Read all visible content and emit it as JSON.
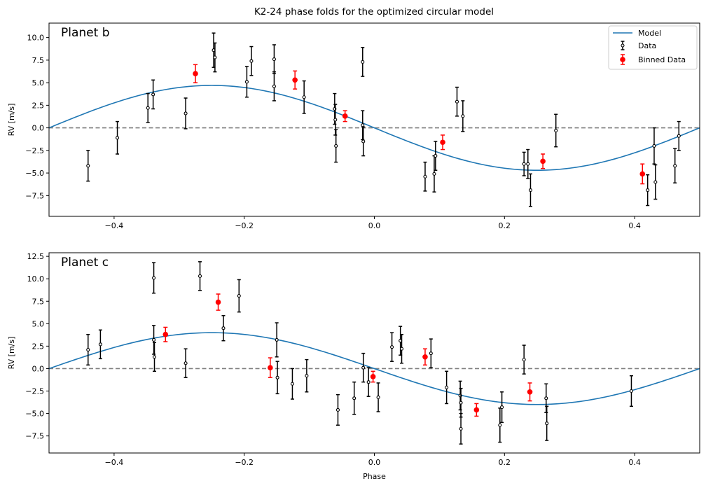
{
  "figure": {
    "title": "K2-24 phase folds for the optimized circular model"
  },
  "legend": {
    "placement": "top-right",
    "model_label": "Model",
    "data_label": "Data",
    "binned_label": "Binned Data"
  },
  "colors": {
    "model": "#1f77b4",
    "binned": "#ff0000",
    "data": "#000000",
    "zero_line": "#7f7f7f"
  },
  "chart_data": [
    {
      "type": "scatter",
      "panel_label": "Planet b",
      "xlabel": "",
      "ylabel": "RV [m/s]",
      "xlim": [
        -0.5,
        0.5
      ],
      "ylim": [
        -9.8,
        11.6
      ],
      "xticks": [
        -0.4,
        -0.2,
        0.0,
        0.2,
        0.4
      ],
      "xtick_labels": [
        "−0.4",
        "−0.2",
        "0.0",
        "0.2",
        "0.4"
      ],
      "yticks": [
        -7.5,
        -5.0,
        -2.5,
        0.0,
        2.5,
        5.0,
        7.5,
        10.0
      ],
      "ytick_labels": [
        "−7.5",
        "−5.0",
        "−2.5",
        "0.0",
        "2.5",
        "5.0",
        "7.5",
        "10.0"
      ],
      "model_amplitude": 4.7,
      "data": [
        [
          -0.44,
          -4.2,
          1.7
        ],
        [
          -0.395,
          -1.1,
          1.8
        ],
        [
          -0.348,
          2.2,
          1.6
        ],
        [
          -0.34,
          3.7,
          1.6
        ],
        [
          -0.29,
          1.6,
          1.7
        ],
        [
          -0.247,
          8.6,
          1.9
        ],
        [
          -0.245,
          7.8,
          1.6
        ],
        [
          -0.196,
          5.1,
          1.7
        ],
        [
          -0.189,
          7.4,
          1.6
        ],
        [
          -0.154,
          7.6,
          1.6
        ],
        [
          -0.154,
          4.6,
          1.6
        ],
        [
          -0.108,
          3.4,
          1.8
        ],
        [
          -0.061,
          2.1,
          1.7
        ],
        [
          -0.06,
          0.9,
          1.7
        ],
        [
          -0.059,
          -2.0,
          1.8
        ],
        [
          -0.018,
          7.3,
          1.6
        ],
        [
          -0.018,
          0.3,
          1.6
        ],
        [
          -0.017,
          -1.5,
          1.6
        ],
        [
          0.078,
          -5.4,
          1.6
        ],
        [
          0.092,
          -5.1,
          2.0
        ],
        [
          0.094,
          -3.1,
          1.6
        ],
        [
          0.127,
          2.9,
          1.6
        ],
        [
          0.136,
          1.3,
          1.7
        ],
        [
          0.23,
          -4.0,
          1.3
        ],
        [
          0.236,
          -4.0,
          1.6
        ],
        [
          0.24,
          -6.9,
          1.8
        ],
        [
          0.279,
          -0.3,
          1.8
        ],
        [
          0.42,
          -6.9,
          1.7
        ],
        [
          0.43,
          -2.0,
          2.0
        ],
        [
          0.432,
          -6.0,
          1.9
        ],
        [
          0.462,
          -4.2,
          1.9
        ],
        [
          0.468,
          -0.9,
          1.6
        ]
      ],
      "binned": [
        [
          -0.275,
          6.0,
          1.0
        ],
        [
          -0.122,
          5.3,
          1.0
        ],
        [
          -0.045,
          1.3,
          0.6
        ],
        [
          0.105,
          -1.6,
          0.8
        ],
        [
          0.259,
          -3.7,
          0.8
        ],
        [
          0.412,
          -5.1,
          1.1
        ]
      ]
    },
    {
      "type": "scatter",
      "panel_label": "Planet c",
      "xlabel": "Phase",
      "ylabel": "RV [m/s]",
      "xlim": [
        -0.5,
        0.5
      ],
      "ylim": [
        -9.4,
        12.9
      ],
      "xticks": [
        -0.4,
        -0.2,
        0.0,
        0.2,
        0.4
      ],
      "xtick_labels": [
        "−0.4",
        "−0.2",
        "0.0",
        "0.2",
        "0.4"
      ],
      "yticks": [
        -7.5,
        -5.0,
        -2.5,
        0.0,
        2.5,
        5.0,
        7.5,
        10.0,
        12.5
      ],
      "ytick_labels": [
        "−7.5",
        "−5.0",
        "−2.5",
        "0.0",
        "2.5",
        "5.0",
        "7.5",
        "10.0",
        "12.5"
      ],
      "model_amplitude": 4.0,
      "data": [
        [
          -0.44,
          2.1,
          1.7
        ],
        [
          -0.421,
          2.7,
          1.6
        ],
        [
          -0.339,
          10.1,
          1.7
        ],
        [
          -0.339,
          3.2,
          1.6
        ],
        [
          -0.338,
          1.3,
          1.6
        ],
        [
          -0.29,
          0.6,
          1.6
        ],
        [
          -0.268,
          10.3,
          1.6
        ],
        [
          -0.232,
          4.5,
          1.4
        ],
        [
          -0.208,
          8.1,
          1.8
        ],
        [
          -0.15,
          3.2,
          1.9
        ],
        [
          -0.149,
          -1.0,
          1.8
        ],
        [
          -0.126,
          -1.7,
          1.7
        ],
        [
          -0.104,
          -0.8,
          1.8
        ],
        [
          -0.056,
          -4.6,
          1.7
        ],
        [
          -0.031,
          -3.3,
          1.8
        ],
        [
          -0.017,
          0.1,
          1.6
        ],
        [
          -0.009,
          -1.5,
          1.6
        ],
        [
          0.006,
          -3.2,
          1.6
        ],
        [
          0.027,
          2.4,
          1.6
        ],
        [
          0.04,
          3.1,
          1.6
        ],
        [
          0.042,
          2.2,
          1.6
        ],
        [
          0.087,
          1.7,
          1.6
        ],
        [
          0.111,
          -2.1,
          1.8
        ],
        [
          0.132,
          -3.0,
          1.6
        ],
        [
          0.133,
          -3.8,
          1.6
        ],
        [
          0.133,
          -6.7,
          1.7
        ],
        [
          0.193,
          -6.3,
          1.9
        ],
        [
          0.196,
          -4.3,
          1.7
        ],
        [
          0.23,
          1.0,
          1.6
        ],
        [
          0.264,
          -3.3,
          1.6
        ],
        [
          0.265,
          -6.1,
          1.9
        ],
        [
          0.395,
          -2.5,
          1.7
        ]
      ],
      "binned": [
        [
          -0.321,
          3.8,
          0.8
        ],
        [
          -0.24,
          7.4,
          0.9
        ],
        [
          -0.16,
          0.1,
          1.1
        ],
        [
          -0.002,
          -0.9,
          0.6
        ],
        [
          0.078,
          1.3,
          0.9
        ],
        [
          0.157,
          -4.6,
          0.7
        ],
        [
          0.239,
          -2.6,
          1.0
        ]
      ]
    }
  ]
}
